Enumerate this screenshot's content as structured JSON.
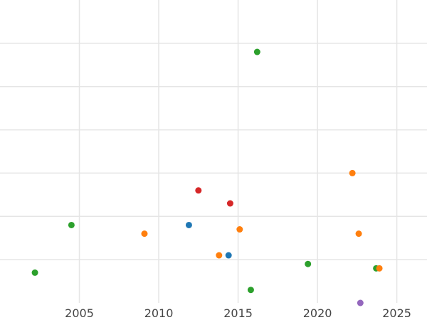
{
  "chart_data": {
    "type": "scatter",
    "title": "",
    "xlabel": "",
    "ylabel": "",
    "xlim": [
      2000,
      2026.9
    ],
    "ylim": [
      -0.2,
      6.8
    ],
    "grid": true,
    "x_ticks": [
      2005,
      2010,
      2015,
      2020,
      2025
    ],
    "x_tick_labels": [
      "2005",
      "2010",
      "2015",
      "2020",
      "2025"
    ],
    "y_gridlines": [
      0.8,
      1.8,
      2.8,
      3.8,
      4.8,
      5.8
    ],
    "points": [
      {
        "x": 2002.2,
        "y": 0.5,
        "color": "#2ca02c"
      },
      {
        "x": 2004.5,
        "y": 1.6,
        "color": "#2ca02c"
      },
      {
        "x": 2009.1,
        "y": 1.4,
        "color": "#ff7f0e"
      },
      {
        "x": 2011.9,
        "y": 1.6,
        "color": "#1f77b4"
      },
      {
        "x": 2012.5,
        "y": 2.4,
        "color": "#d62728"
      },
      {
        "x": 2013.8,
        "y": 0.9,
        "color": "#ff7f0e"
      },
      {
        "x": 2014.4,
        "y": 0.9,
        "color": "#1f77b4"
      },
      {
        "x": 2014.5,
        "y": 2.1,
        "color": "#d62728"
      },
      {
        "x": 2015.1,
        "y": 1.5,
        "color": "#ff7f0e"
      },
      {
        "x": 2015.8,
        "y": 0.1,
        "color": "#2ca02c"
      },
      {
        "x": 2016.2,
        "y": 5.6,
        "color": "#2ca02c"
      },
      {
        "x": 2019.4,
        "y": 0.7,
        "color": "#2ca02c"
      },
      {
        "x": 2022.2,
        "y": 2.8,
        "color": "#ff7f0e"
      },
      {
        "x": 2022.6,
        "y": 1.4,
        "color": "#ff7f0e"
      },
      {
        "x": 2022.7,
        "y": -0.2,
        "color": "#9467bd"
      },
      {
        "x": 2023.7,
        "y": 0.6,
        "color": "#2ca02c"
      },
      {
        "x": 2023.9,
        "y": 0.6,
        "color": "#ff7f0e"
      }
    ]
  }
}
